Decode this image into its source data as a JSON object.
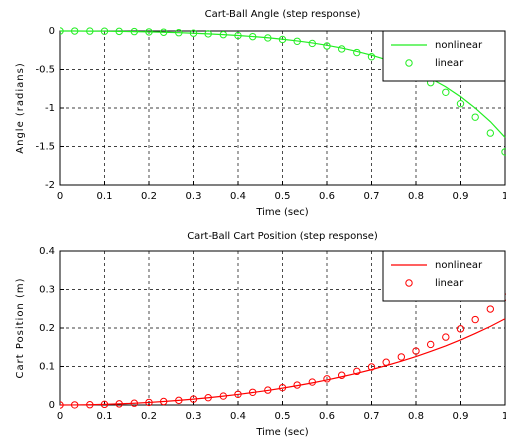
{
  "chart_data": [
    {
      "type": "line",
      "title": "Cart-Ball Angle (step response)",
      "x_label": "Time (sec)",
      "y_label": "Angle (radians)",
      "x": [
        0,
        0.033,
        0.067,
        0.1,
        0.133,
        0.167,
        0.2,
        0.233,
        0.267,
        0.3,
        0.333,
        0.367,
        0.4,
        0.433,
        0.467,
        0.5,
        0.533,
        0.567,
        0.6,
        0.633,
        0.667,
        0.7,
        0.733,
        0.767,
        0.8,
        0.833,
        0.867,
        0.9,
        0.933,
        0.967,
        1
      ],
      "series": [
        {
          "name": "nonlinear",
          "style": "line",
          "color": "#22ee22",
          "values": [
            0,
            -0.0003,
            -0.0012,
            -0.0027,
            -0.0049,
            -0.0079,
            -0.0115,
            -0.0162,
            -0.022,
            -0.0288,
            -0.037,
            -0.047,
            -0.058,
            -0.072,
            -0.088,
            -0.107,
            -0.129,
            -0.155,
            -0.186,
            -0.222,
            -0.265,
            -0.314,
            -0.373,
            -0.441,
            -0.521,
            -0.615,
            -0.724,
            -0.852,
            -1.002,
            -1.177,
            -1.382
          ]
        },
        {
          "name": "linear",
          "style": "marker",
          "color": "#22ee22",
          "values": [
            0,
            -0.0003,
            -0.0012,
            -0.0027,
            -0.0049,
            -0.0079,
            -0.0116,
            -0.0163,
            -0.0221,
            -0.029,
            -0.0373,
            -0.0473,
            -0.0593,
            -0.0734,
            -0.0902,
            -0.1101,
            -0.1337,
            -0.1615,
            -0.1945,
            -0.2335,
            -0.2796,
            -0.334,
            -0.3984,
            -0.4745,
            -0.5643,
            -0.6705,
            -0.796,
            -0.9441,
            -1.1192,
            -1.326,
            -1.5704
          ]
        }
      ],
      "xlim": [
        0,
        1
      ],
      "xticks": [
        0,
        0.1,
        0.2,
        0.3,
        0.4,
        0.5,
        0.6,
        0.7,
        0.8,
        0.9,
        1
      ],
      "ylim": [
        -2,
        0
      ],
      "yticks": [
        0,
        -0.5,
        -1,
        -1.5,
        -2
      ],
      "grid": true,
      "legend": "northeast"
    },
    {
      "type": "line",
      "title": "Cart-Ball Cart Position (step response)",
      "x_label": "Time (sec)",
      "y_label": "Cart Position (m)",
      "x": [
        0,
        0.033,
        0.067,
        0.1,
        0.133,
        0.167,
        0.2,
        0.233,
        0.267,
        0.3,
        0.333,
        0.367,
        0.4,
        0.433,
        0.467,
        0.5,
        0.533,
        0.567,
        0.6,
        0.633,
        0.667,
        0.7,
        0.733,
        0.767,
        0.8,
        0.833,
        0.867,
        0.9,
        0.933,
        0.967,
        1
      ],
      "series": [
        {
          "name": "nonlinear",
          "style": "line",
          "color": "#ff0000",
          "values": [
            0,
            0.0002,
            0.0007,
            0.0017,
            0.0029,
            0.0046,
            0.0067,
            0.0091,
            0.012,
            0.0153,
            0.0189,
            0.023,
            0.0274,
            0.0325,
            0.0379,
            0.0439,
            0.0503,
            0.0575,
            0.0651,
            0.0734,
            0.0822,
            0.0919,
            0.1023,
            0.1137,
            0.1259,
            0.1391,
            0.1535,
            0.1689,
            0.1858,
            0.2042,
            0.2241
          ]
        },
        {
          "name": "linear",
          "style": "marker",
          "color": "#ff0000",
          "values": [
            0,
            0.0002,
            0.0007,
            0.0017,
            0.0029,
            0.0046,
            0.0067,
            0.0091,
            0.012,
            0.0153,
            0.019,
            0.0232,
            0.0278,
            0.033,
            0.0387,
            0.045,
            0.0519,
            0.0596,
            0.068,
            0.0773,
            0.0874,
            0.0987,
            0.1111,
            0.1249,
            0.1402,
            0.1573,
            0.1764,
            0.1978,
            0.222,
            0.2493,
            0.2801
          ]
        }
      ],
      "xlim": [
        0,
        1
      ],
      "xticks": [
        0,
        0.1,
        0.2,
        0.3,
        0.4,
        0.5,
        0.6,
        0.7,
        0.8,
        0.9,
        1
      ],
      "ylim": [
        0,
        0.4
      ],
      "yticks": [
        0,
        0.1,
        0.2,
        0.3,
        0.4
      ],
      "grid": true,
      "legend": "northeast"
    }
  ]
}
